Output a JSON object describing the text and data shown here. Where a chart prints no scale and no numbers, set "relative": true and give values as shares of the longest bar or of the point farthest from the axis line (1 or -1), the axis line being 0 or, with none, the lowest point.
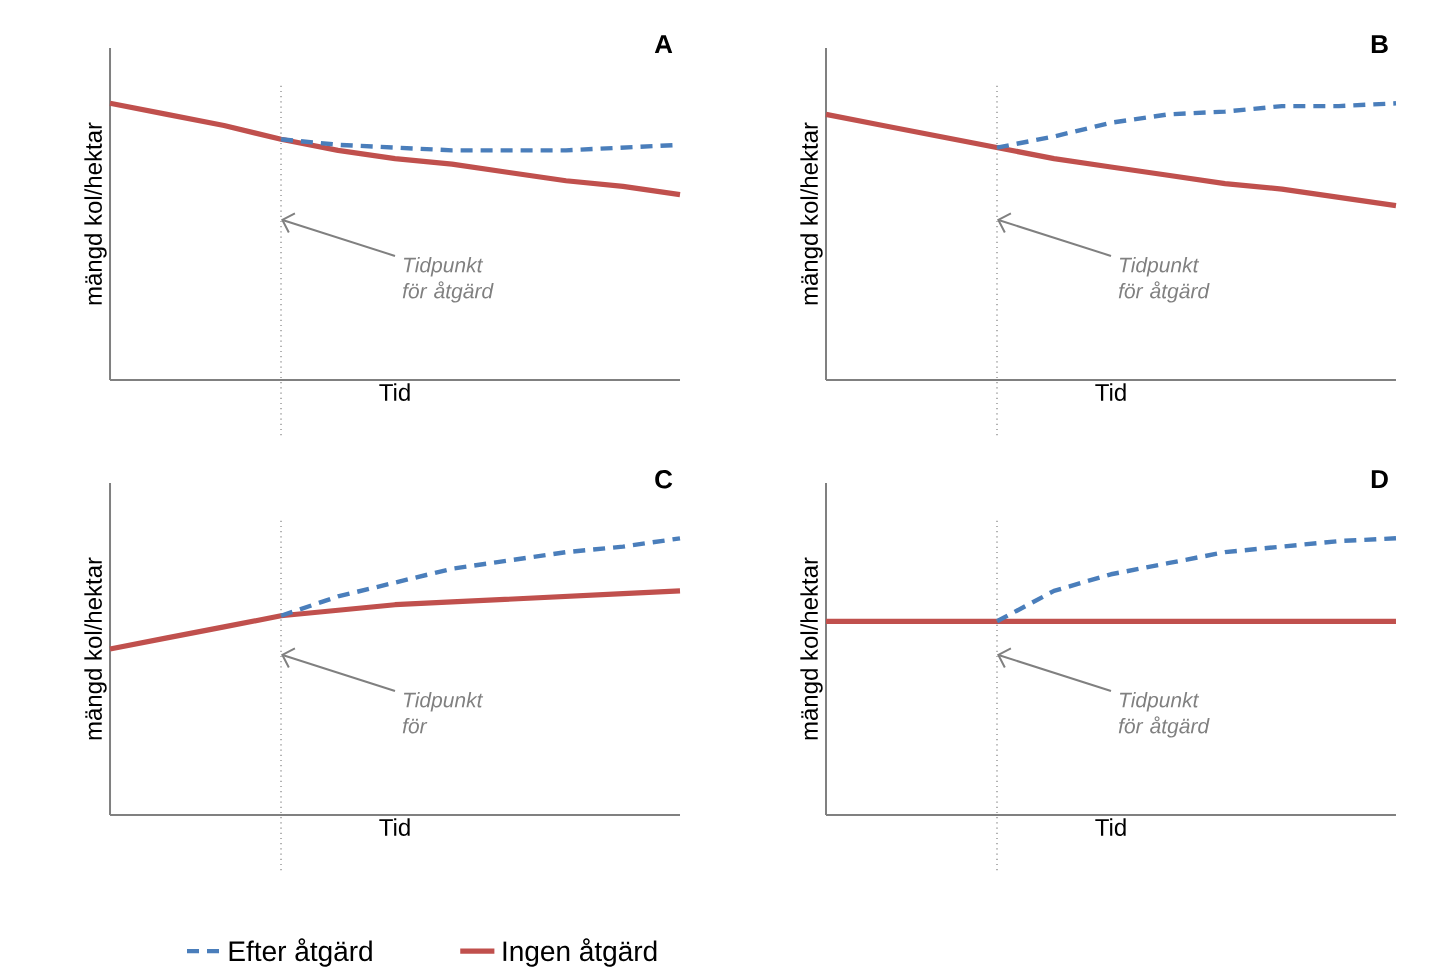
{
  "chart_data": [
    {
      "type": "line",
      "title": "A",
      "xlabel": "Tid",
      "ylabel": "mängd kol/hektar",
      "relative": true,
      "legend": false,
      "categories": [
        null,
        null,
        null,
        null,
        null,
        null,
        null,
        null,
        null,
        null,
        null
      ],
      "series": [
        {
          "color": "#4a7ebb",
          "line_style": "dashed",
          "values": [
            null,
            null,
            null,
            0.87,
            0.85,
            0.84,
            0.83,
            0.83,
            0.83,
            0.84,
            0.85
          ]
        },
        {
          "color": "#c0504d",
          "line_style": "solid",
          "values": [
            1.0,
            0.96,
            0.92,
            0.87,
            0.83,
            0.8,
            0.78,
            0.75,
            0.72,
            0.7,
            0.67
          ]
        }
      ],
      "annotations": [
        "Tidpunkt för åtgärd"
      ]
    },
    {
      "type": "line",
      "title": "B",
      "xlabel": "Tid",
      "ylabel": "mängd kol/hektar",
      "relative": true,
      "legend": false,
      "categories": [
        null,
        null,
        null,
        null,
        null,
        null,
        null,
        null,
        null,
        null,
        null
      ],
      "series": [
        {
          "color": "#4a7ebb",
          "line_style": "dashed",
          "values": [
            null,
            null,
            null,
            0.84,
            0.88,
            0.93,
            0.96,
            0.97,
            0.99,
            0.99,
            1.0
          ]
        },
        {
          "color": "#c0504d",
          "line_style": "solid",
          "values": [
            0.96,
            0.92,
            0.88,
            0.84,
            0.8,
            0.77,
            0.74,
            0.71,
            0.69,
            0.66,
            0.63
          ]
        }
      ],
      "annotations": [
        "Tidpunkt för åtgärd"
      ]
    },
    {
      "type": "line",
      "title": "C",
      "xlabel": "Tid",
      "ylabel": "mängd kol/hektar",
      "relative": true,
      "legend": "bottom",
      "categories": [
        null,
        null,
        null,
        null,
        null,
        null,
        null,
        null,
        null,
        null,
        null
      ],
      "series": [
        {
          "name": "Efter åtgärd",
          "color": "#4a7ebb",
          "line_style": "dashed",
          "values": [
            null,
            null,
            null,
            0.72,
            0.79,
            0.84,
            0.89,
            0.92,
            0.95,
            0.97,
            1.0
          ]
        },
        {
          "name": "Ingen åtgärd",
          "color": "#c0504d",
          "line_style": "solid",
          "values": [
            0.6,
            0.64,
            0.68,
            0.72,
            0.74,
            0.76,
            0.77,
            0.78,
            0.79,
            0.8,
            0.81
          ]
        }
      ],
      "annotations": [
        "Tidpunkt för"
      ]
    },
    {
      "type": "line",
      "title": "D",
      "xlabel": "Tid",
      "ylabel": "mängd kol/hektar",
      "relative": true,
      "legend": false,
      "categories": [
        null,
        null,
        null,
        null,
        null,
        null,
        null,
        null,
        null,
        null,
        null
      ],
      "series": [
        {
          "color": "#4a7ebb",
          "line_style": "dashed",
          "values": [
            null,
            null,
            null,
            0.7,
            0.81,
            0.87,
            0.91,
            0.95,
            0.97,
            0.99,
            1.0
          ]
        },
        {
          "color": "#c0504d",
          "line_style": "solid",
          "values": [
            0.7,
            0.7,
            0.7,
            0.7,
            0.7,
            0.7,
            0.7,
            0.7,
            0.7,
            0.7,
            0.7
          ]
        }
      ],
      "annotations": [
        "Tidpunkt för åtgärd"
      ]
    }
  ]
}
